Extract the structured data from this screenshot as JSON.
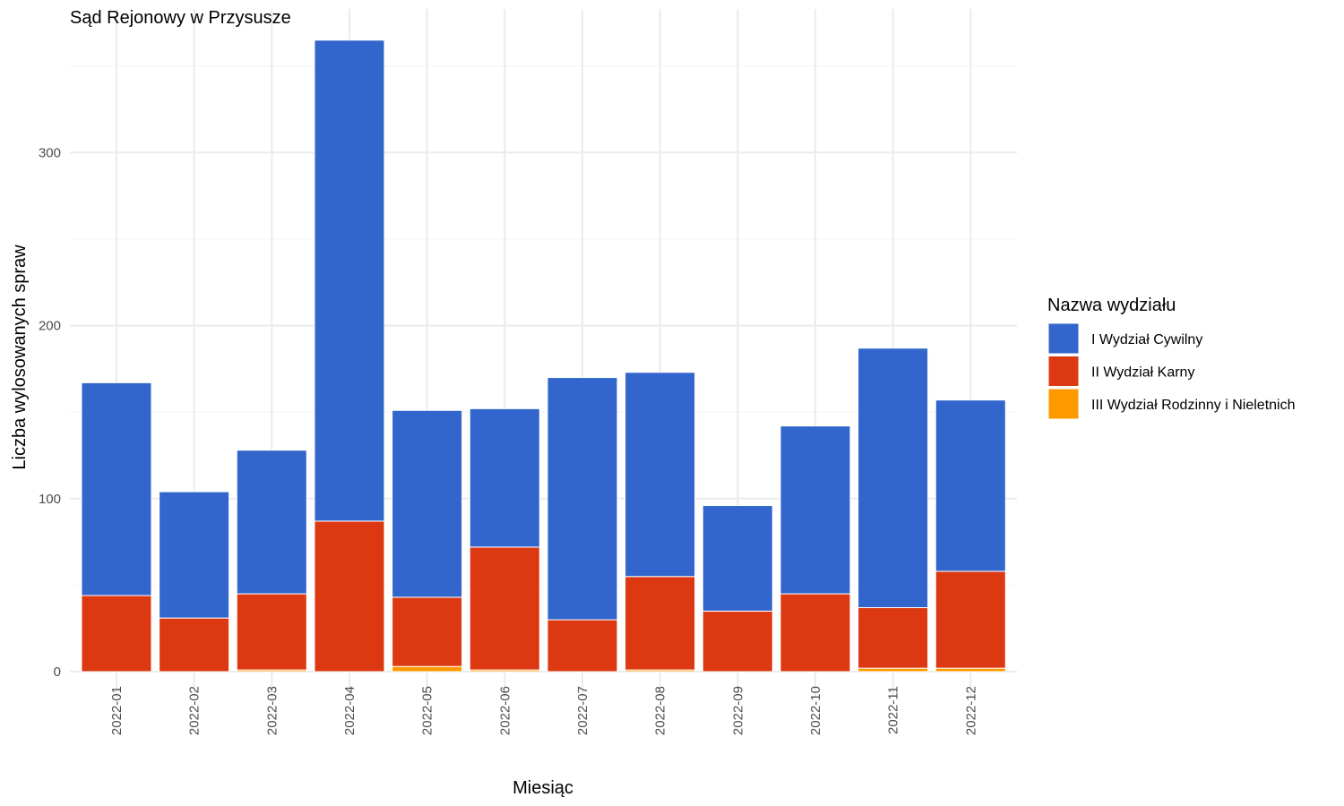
{
  "chart_data": {
    "type": "bar",
    "stacked": true,
    "title": "Sąd Rejonowy w Przysusze",
    "xlabel": "Miesiąc",
    "ylabel": "Liczba wylosowanych spraw",
    "ylim": [
      0,
      380
    ],
    "yticks": [
      0,
      100,
      200,
      300
    ],
    "grid": true,
    "legend_title": "Nazwa wydziału",
    "legend_position": "right",
    "categories": [
      "2022-01",
      "2022-02",
      "2022-03",
      "2022-04",
      "2022-05",
      "2022-06",
      "2022-07",
      "2022-08",
      "2022-09",
      "2022-10",
      "2022-11",
      "2022-12"
    ],
    "series": [
      {
        "name": "III Wydział Rodzinny i Nieletnich",
        "color": "#ff9900",
        "values": [
          0,
          0,
          1,
          0,
          3,
          1,
          0,
          1,
          0,
          0,
          2,
          2
        ]
      },
      {
        "name": "II Wydział Karny",
        "color": "#dc3912",
        "values": [
          44,
          31,
          44,
          87,
          40,
          71,
          30,
          54,
          35,
          45,
          35,
          56
        ]
      },
      {
        "name": "I Wydział Cywilny",
        "color": "#3366cc",
        "values": [
          123,
          73,
          83,
          278,
          108,
          80,
          140,
          118,
          61,
          97,
          150,
          99
        ]
      }
    ],
    "legend_order": [
      "I Wydział Cywilny",
      "II Wydział Karny",
      "III Wydział Rodzinny i Nieletnich"
    ]
  }
}
